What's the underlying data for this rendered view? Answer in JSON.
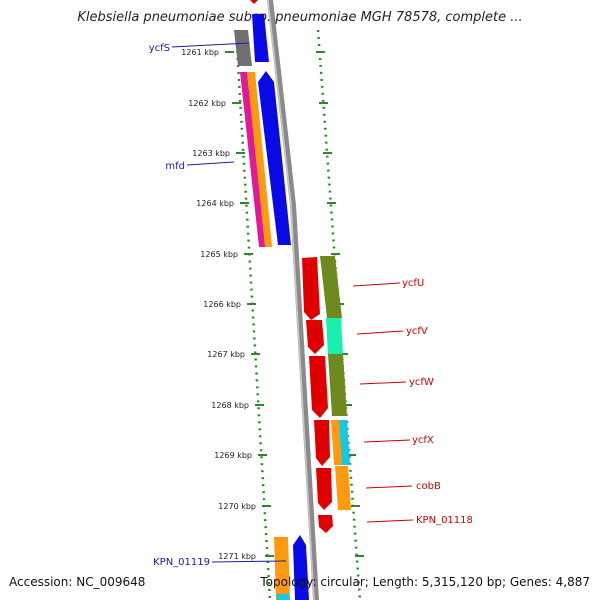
{
  "title": "Klebsiella pneumoniae subsp. pneumoniae MGH 78578, complete ...",
  "ticks": [
    "1261 kbp",
    "1262 kbp",
    "1263 kbp",
    "1264 kbp",
    "1265 kbp",
    "1266 kbp",
    "1267 kbp",
    "1268 kbp",
    "1269 kbp",
    "1270 kbp",
    "1271 kbp"
  ],
  "left_labels": [
    "ycfS",
    "mfd",
    "KPN_01119"
  ],
  "right_labels": [
    "ycfU",
    "ycfV",
    "ycfW",
    "ycfX",
    "cobB",
    "KPN_01118"
  ],
  "footer": {
    "accession": "Accession: NC_009648",
    "summary": "Topology: circular; Length: 5,315,120 bp; Genes: 4,887"
  },
  "colors": {
    "backbone": "#8a8a8a",
    "dots": "#2a8a2a",
    "left_label": "#1a1aa8",
    "right_label": "#cc0000",
    "gene_red": "#e00000",
    "gene_blue": "#0a0ae6",
    "gene_olive": "#6e8a1e",
    "gene_teal": "#18f0b0",
    "gene_orange": "#ff9a10",
    "gene_magenta": "#e0189a",
    "gene_cyan": "#18c8e0",
    "gene_gray": "#707070"
  }
}
